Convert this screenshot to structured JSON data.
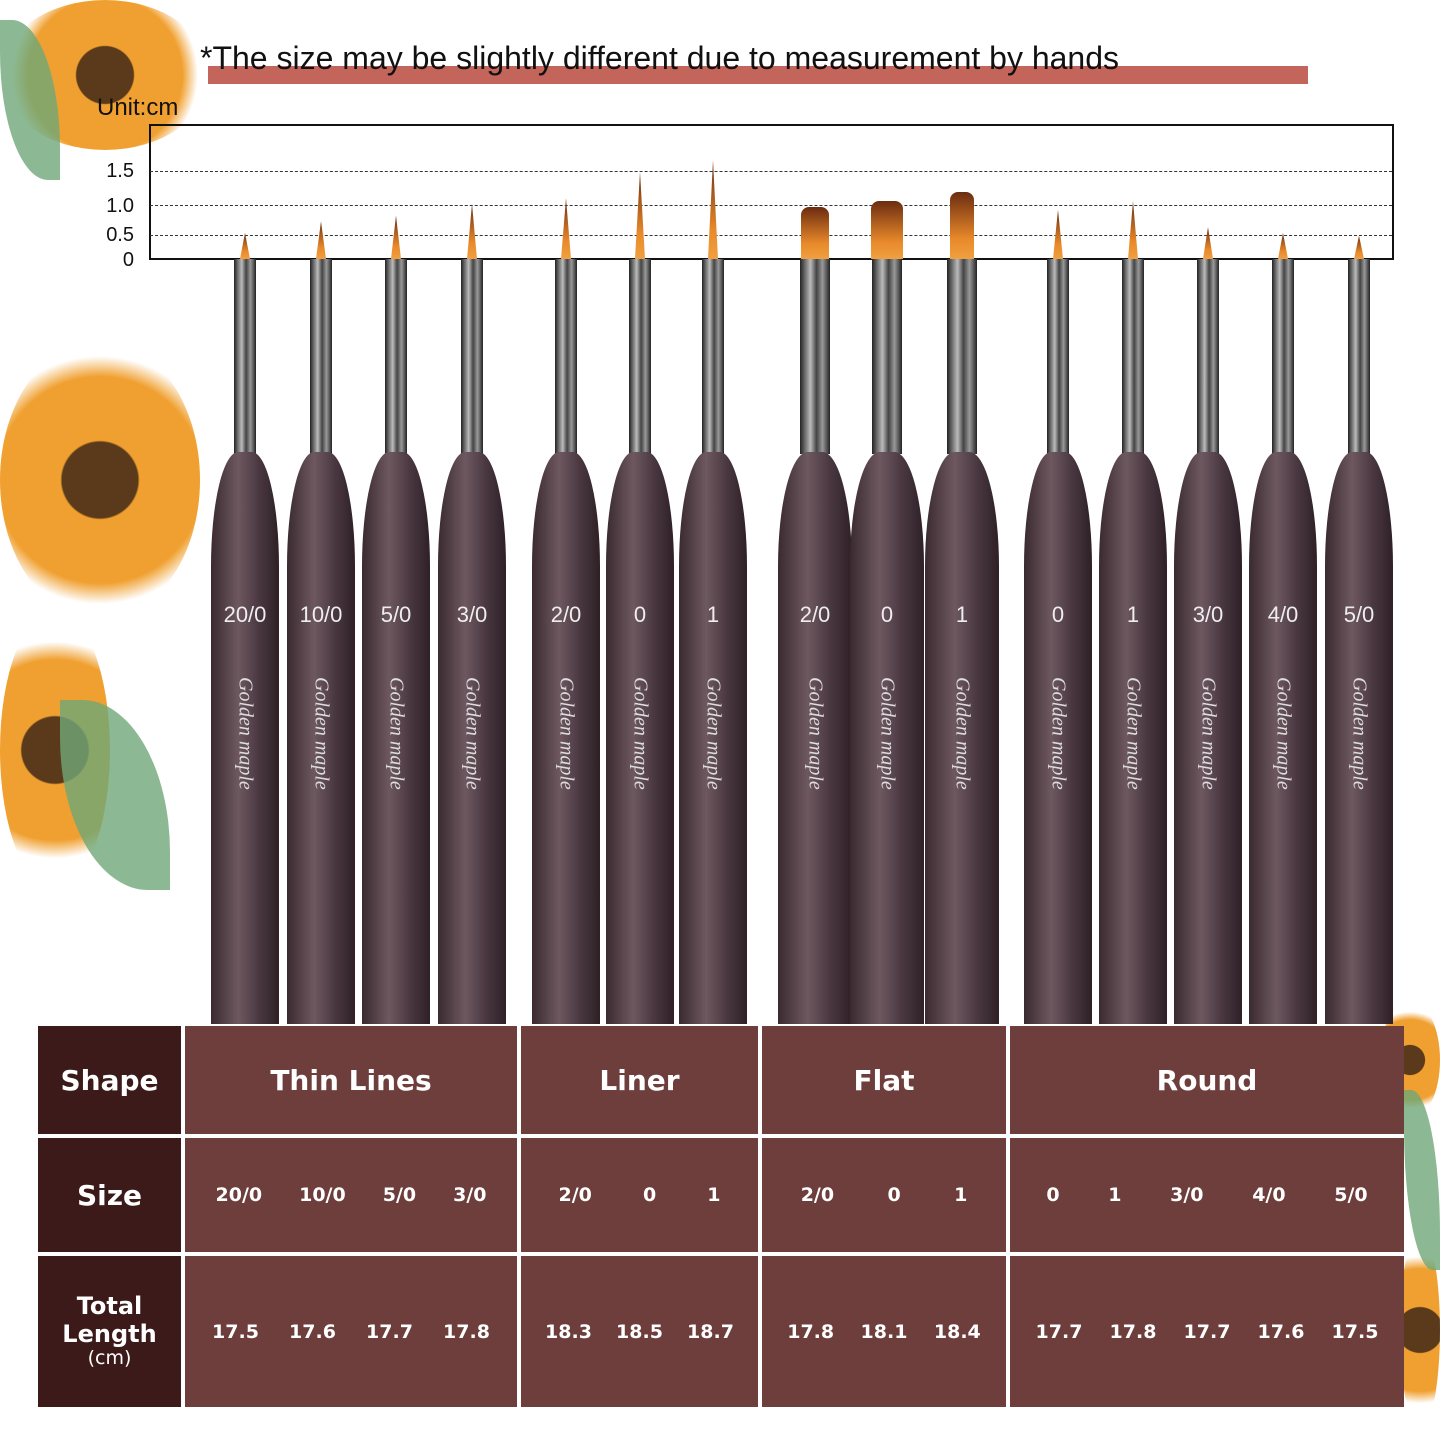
{
  "header": {
    "title": "*The size may be slightly different due to measurement by hands",
    "unit": "Unit:cm"
  },
  "scale": {
    "ticks": [
      "1.5",
      "1.0",
      "0.5",
      "0"
    ]
  },
  "brand": "Golden maple",
  "colors": {
    "table_header": "#3d1a1a",
    "table_cell": "#6e3e3c",
    "title_bar": "#c4655c",
    "bristle": "#e8892a",
    "handle": "#5a464e"
  },
  "brushes": [
    {
      "label": "20/0",
      "shape": "thin",
      "bristle_cm": 0.45
    },
    {
      "label": "10/0",
      "shape": "thin",
      "bristle_cm": 0.65
    },
    {
      "label": "5/0",
      "shape": "thin",
      "bristle_cm": 0.75
    },
    {
      "label": "3/0",
      "shape": "thin",
      "bristle_cm": 0.95
    },
    {
      "label": "2/0",
      "shape": "thin",
      "bristle_cm": 1.05
    },
    {
      "label": "0",
      "shape": "thin",
      "bristle_cm": 1.5
    },
    {
      "label": "1",
      "shape": "thin",
      "bristle_cm": 1.7
    },
    {
      "label": "2/0",
      "shape": "flat",
      "bristle_cm": 0.9
    },
    {
      "label": "0",
      "shape": "flat",
      "bristle_cm": 1.0
    },
    {
      "label": "1",
      "shape": "flat",
      "bristle_cm": 1.15
    },
    {
      "label": "0",
      "shape": "thin",
      "bristle_cm": 0.85
    },
    {
      "label": "1",
      "shape": "thin",
      "bristle_cm": 1.0
    },
    {
      "label": "3/0",
      "shape": "thin",
      "bristle_cm": 0.55
    },
    {
      "label": "4/0",
      "shape": "thin",
      "bristle_cm": 0.45
    },
    {
      "label": "5/0",
      "shape": "thin",
      "bristle_cm": 0.4
    }
  ],
  "table": {
    "row_labels": {
      "shape": "Shape",
      "size": "Size",
      "length": "Total Length",
      "length_unit": "(cm)"
    },
    "groups": [
      {
        "name": "Thin Lines",
        "sizes": [
          "20/0",
          "10/0",
          "5/0",
          "3/0"
        ],
        "lengths": [
          "17.5",
          "17.6",
          "17.7",
          "17.8"
        ]
      },
      {
        "name": "Liner",
        "sizes": [
          "2/0",
          "0",
          "1"
        ],
        "lengths": [
          "18.3",
          "18.5",
          "18.7"
        ]
      },
      {
        "name": "Flat",
        "sizes": [
          "2/0",
          "0",
          "1"
        ],
        "lengths": [
          "17.8",
          "18.1",
          "18.4"
        ]
      },
      {
        "name": "Round",
        "sizes": [
          "0",
          "1",
          "3/0",
          "4/0",
          "5/0"
        ],
        "lengths": [
          "17.7",
          "17.8",
          "17.7",
          "17.6",
          "17.5"
        ]
      }
    ]
  }
}
